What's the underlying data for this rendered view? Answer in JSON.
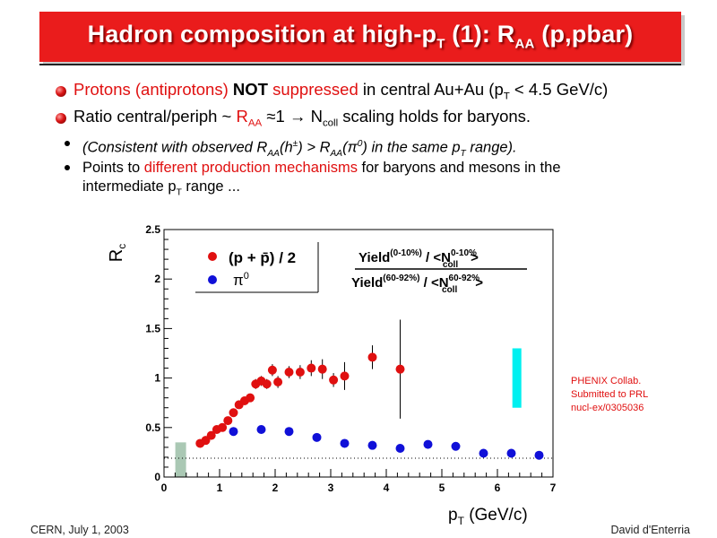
{
  "slide": {
    "title_main": "Hadron composition at high-p",
    "title_sub_t": "T",
    "title_mid": " (1): R",
    "title_sub_aa": "AA",
    "title_end": " (p,pbar)",
    "footer_left": "CERN, July 1, 2003",
    "footer_right": "David d'Enterria"
  },
  "bullets": {
    "b1_red": "Protons (antiprotons) ",
    "b1_bold": "NOT",
    "b1_red2": " suppressed",
    "b1_rest": " in central Au+Au (p",
    "b1_sub": "T",
    "b1_end": " < 4.5 GeV/c)",
    "b2_a": "Ratio central/periph ~ ",
    "b2_r": "R",
    "b2_sub": "AA",
    "b2_b": " ≈1  →  N",
    "b2_sub2": "coll",
    "b2_c": " scaling holds for baryons.",
    "b3_a": "(Consistent with observed R",
    "b3_s1": "AA",
    "b3_b": "(h",
    "b3_sup": "±",
    "b3_c": ") > R",
    "b3_s2": "AA",
    "b3_d": "(π",
    "b3_sup2": "0",
    "b3_e": ") in the same p",
    "b3_s3": "T",
    "b3_f": " range).",
    "b4_a": "Points to ",
    "b4_red": "different production mechanisms",
    "b4_b": " for baryons and mesons in the",
    "b4_c": "intermediate  p",
    "b4_sub": "T",
    "b4_d": " range ..."
  },
  "chart_data": {
    "type": "scatter",
    "title": "",
    "xlabel": "p_T (GeV/c)",
    "ylabel": "R_c",
    "xlim": [
      0,
      7
    ],
    "ylim": [
      0,
      2.5
    ],
    "xticks": [
      "0",
      "1",
      "2",
      "3",
      "4",
      "5",
      "6",
      "7"
    ],
    "yticks": [
      "0",
      "0.5",
      "1",
      "1.5",
      "2",
      "2.5"
    ],
    "legend": {
      "placement": "top-left",
      "entries": [
        "(p + p̄) / 2",
        "π0"
      ]
    },
    "formula": {
      "num_a": "Yield",
      "num_sup": "(0-10%)",
      "num_b": " / <N",
      "num_sup2": "0-10%",
      "num_sub2": "coll",
      "num_c": ">",
      "den_a": "Yield",
      "den_sup": "(60-92%)",
      "den_b": " / <N",
      "den_sup2": "60-92%",
      "den_sub2": "coll",
      "den_c": ">"
    },
    "annotation": [
      "PHENIX Collab.",
      "Submitted to PRL",
      "nucl-ex/0305036"
    ],
    "dotted_line_y": 0.19,
    "norm_box_left": {
      "x": 0.3,
      "y_low": 0,
      "y_high": 0.35,
      "color": "#aac8b4"
    },
    "norm_box_right": {
      "x": 6.35,
      "y_low": 0.7,
      "y_high": 1.3,
      "color": "#00f0f0"
    },
    "series": [
      {
        "name": "(p + p̄) / 2",
        "color": "#e01010",
        "points": [
          {
            "x": 0.65,
            "y": 0.34,
            "err": 0.03
          },
          {
            "x": 0.75,
            "y": 0.37,
            "err": 0.03
          },
          {
            "x": 0.85,
            "y": 0.42,
            "err": 0.03
          },
          {
            "x": 0.95,
            "y": 0.48,
            "err": 0.03
          },
          {
            "x": 1.05,
            "y": 0.5,
            "err": 0.04
          },
          {
            "x": 1.15,
            "y": 0.57,
            "err": 0.04
          },
          {
            "x": 1.25,
            "y": 0.65,
            "err": 0.04
          },
          {
            "x": 1.35,
            "y": 0.73,
            "err": 0.04
          },
          {
            "x": 1.45,
            "y": 0.77,
            "err": 0.04
          },
          {
            "x": 1.55,
            "y": 0.8,
            "err": 0.04
          },
          {
            "x": 1.65,
            "y": 0.94,
            "err": 0.05
          },
          {
            "x": 1.75,
            "y": 0.97,
            "err": 0.05
          },
          {
            "x": 1.85,
            "y": 0.94,
            "err": 0.05
          },
          {
            "x": 1.95,
            "y": 1.08,
            "err": 0.06
          },
          {
            "x": 2.05,
            "y": 0.96,
            "err": 0.06
          },
          {
            "x": 2.25,
            "y": 1.06,
            "err": 0.06
          },
          {
            "x": 2.45,
            "y": 1.06,
            "err": 0.07
          },
          {
            "x": 2.65,
            "y": 1.1,
            "err": 0.08
          },
          {
            "x": 2.85,
            "y": 1.09,
            "err": 0.1
          },
          {
            "x": 3.05,
            "y": 0.98,
            "err": 0.07
          },
          {
            "x": 3.25,
            "y": 1.02,
            "err": 0.14
          },
          {
            "x": 3.75,
            "y": 1.21,
            "err": 0.12
          },
          {
            "x": 4.25,
            "y": 1.09,
            "err": 0.5
          }
        ]
      },
      {
        "name": "π0",
        "color": "#1010d8",
        "points": [
          {
            "x": 1.25,
            "y": 0.46,
            "err": 0.02
          },
          {
            "x": 1.75,
            "y": 0.48,
            "err": 0.03
          },
          {
            "x": 2.25,
            "y": 0.46,
            "err": 0.02
          },
          {
            "x": 2.75,
            "y": 0.4,
            "err": 0.02
          },
          {
            "x": 3.25,
            "y": 0.34,
            "err": 0.02
          },
          {
            "x": 3.75,
            "y": 0.32,
            "err": 0.02
          },
          {
            "x": 4.25,
            "y": 0.29,
            "err": 0.02
          },
          {
            "x": 4.75,
            "y": 0.33,
            "err": 0.03
          },
          {
            "x": 5.25,
            "y": 0.31,
            "err": 0.03
          },
          {
            "x": 5.75,
            "y": 0.24,
            "err": 0.03
          },
          {
            "x": 6.25,
            "y": 0.24,
            "err": 0.03
          },
          {
            "x": 6.75,
            "y": 0.22,
            "err": 0.03
          }
        ]
      }
    ],
    "grid": false
  }
}
